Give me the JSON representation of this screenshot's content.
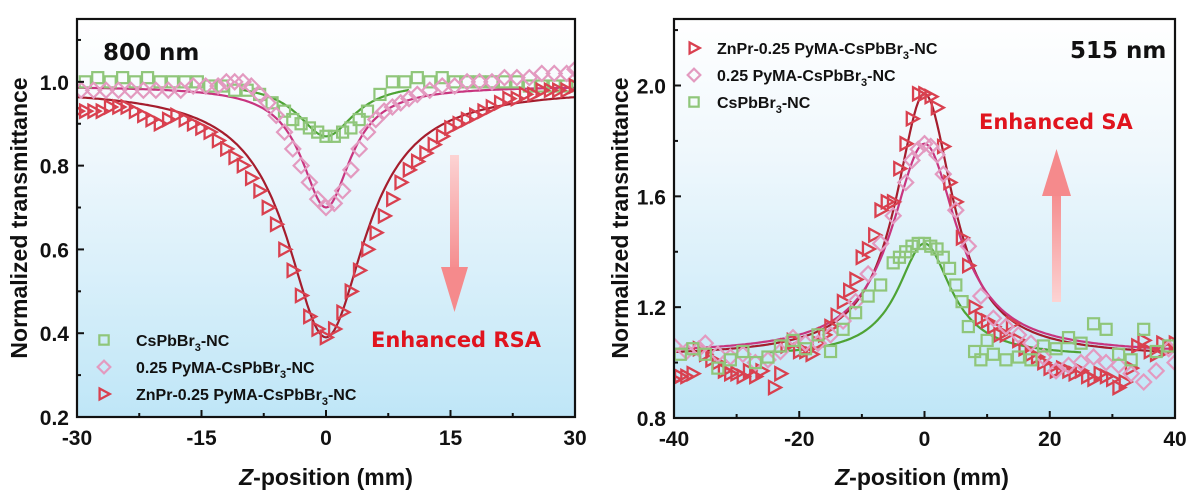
{
  "chart_data": [
    {
      "type": "scatter",
      "panel_label": "800 nm",
      "annotation": "Enhanced RSA",
      "annotation_arrow": "down",
      "xlabel_italic": "Z",
      "xlabel_rest": "-position (mm)",
      "ylabel": "Normalized transmittance",
      "xlim": [
        -30,
        30
      ],
      "ylim": [
        0.2,
        1.15
      ],
      "xticks": [
        -30,
        -15,
        0,
        15,
        30
      ],
      "xtick_labels": [
        "-30",
        "-15",
        "0",
        "15",
        "30"
      ],
      "yticks": [
        0.2,
        0.4,
        0.6,
        0.8,
        1.0
      ],
      "ytick_labels": [
        "0.2",
        "0.4",
        "0.6",
        "0.8",
        "1.0"
      ],
      "legend_position": "bottom-left",
      "series": [
        {
          "name_main": "CsPbBr",
          "name_sub": "3",
          "name_tail": "-NC",
          "marker": "square",
          "color": "#8fc67a",
          "line_color": "#4ea335",
          "fit": {
            "baseline": 1.0,
            "depth": 0.13,
            "width": 4.2,
            "x_range": [
              -10,
              10
            ]
          },
          "x": [
            -29,
            -27.5,
            -26,
            -24.5,
            -23,
            -21.5,
            -20,
            -18.5,
            -17,
            -15.5,
            -14,
            -12.5,
            -11,
            -9.5,
            -8,
            -6.5,
            -5,
            -4,
            -3,
            -2,
            -1,
            0,
            1,
            2,
            3,
            4,
            5,
            6.5,
            8,
            9.5,
            11,
            12.5,
            14,
            15.5,
            17,
            18.5,
            20,
            21.5,
            23,
            24.5,
            26,
            27.5,
            29
          ],
          "y": [
            1.0,
            1.01,
            1.0,
            1.01,
            1.0,
            1.01,
            1.0,
            1.0,
            1.0,
            1.0,
            0.99,
            0.99,
            0.98,
            0.98,
            0.97,
            0.95,
            0.93,
            0.91,
            0.9,
            0.89,
            0.88,
            0.87,
            0.87,
            0.88,
            0.89,
            0.91,
            0.93,
            0.97,
            1.0,
            1.0,
            1.01,
            1.0,
            1.01,
            1.0,
            1.0,
            1.0,
            1.0,
            1.0,
            1.0,
            0.99,
            0.99,
            0.99,
            0.99
          ]
        },
        {
          "name_main": "0.25 PyMA-CsPbBr",
          "name_sub": "3",
          "name_tail": "-NC",
          "marker": "diamond",
          "color": "#e39ac0",
          "line_color": "#c8357f",
          "fit": {
            "baseline": 0.99,
            "depth": 0.29,
            "width": 3.6,
            "x_range": [
              -30,
              30
            ]
          },
          "x": [
            -29.5,
            -28,
            -26.5,
            -25,
            -23.5,
            -22,
            -20.5,
            -19,
            -17.5,
            -16,
            -14.5,
            -13,
            -12,
            -11,
            -10,
            -9,
            -8,
            -7,
            -6,
            -5,
            -4,
            -3,
            -2,
            -1,
            0,
            1,
            2,
            3,
            4,
            5,
            6,
            7,
            8,
            9,
            10,
            11,
            12.5,
            14,
            15.5,
            17,
            18.5,
            20,
            21.5,
            23,
            24.5,
            26,
            27.5,
            29,
            30
          ],
          "y": [
            0.98,
            0.98,
            0.98,
            0.98,
            0.98,
            0.98,
            0.98,
            0.98,
            0.98,
            0.99,
            0.99,
            0.99,
            1.0,
            1.0,
            1.0,
            0.99,
            0.97,
            0.95,
            0.92,
            0.88,
            0.84,
            0.8,
            0.76,
            0.72,
            0.7,
            0.71,
            0.74,
            0.79,
            0.84,
            0.88,
            0.91,
            0.93,
            0.94,
            0.95,
            0.96,
            0.97,
            0.98,
            0.99,
            0.99,
            1.0,
            1.0,
            1.0,
            1.01,
            1.01,
            1.01,
            1.02,
            1.02,
            1.02,
            1.03
          ]
        },
        {
          "name_main": "ZnPr-0.25 PyMA-CsPbBr",
          "name_sub": "3",
          "name_tail": "-NC",
          "marker": "triangle-right",
          "color": "#d9404f",
          "line_color": "#a51d2d",
          "fit": {
            "baseline": 0.985,
            "depth": 0.595,
            "width": 5.8,
            "x_range": [
              -30,
              30
            ]
          },
          "x": [
            -30,
            -29,
            -28,
            -27,
            -26,
            -25,
            -24,
            -23,
            -22,
            -21,
            -20,
            -19,
            -18,
            -17,
            -16,
            -15,
            -14,
            -13,
            -12,
            -11,
            -10,
            -9,
            -8,
            -7,
            -6,
            -5,
            -4,
            -3,
            -2,
            -1,
            0,
            1,
            2,
            3,
            4,
            5,
            6,
            7,
            8,
            9,
            10,
            11,
            12,
            13,
            14,
            15,
            16,
            17,
            18,
            19,
            20,
            21,
            22,
            23,
            24,
            25,
            26,
            27,
            28,
            29,
            30
          ],
          "y": [
            0.93,
            0.93,
            0.93,
            0.93,
            0.94,
            0.94,
            0.94,
            0.93,
            0.92,
            0.91,
            0.9,
            0.91,
            0.92,
            0.91,
            0.9,
            0.89,
            0.88,
            0.86,
            0.84,
            0.82,
            0.8,
            0.77,
            0.74,
            0.7,
            0.66,
            0.6,
            0.55,
            0.49,
            0.44,
            0.41,
            0.39,
            0.41,
            0.45,
            0.5,
            0.55,
            0.6,
            0.64,
            0.68,
            0.72,
            0.76,
            0.79,
            0.81,
            0.83,
            0.85,
            0.87,
            0.89,
            0.9,
            0.91,
            0.92,
            0.93,
            0.94,
            0.95,
            0.96,
            0.96,
            0.97,
            0.97,
            0.98,
            0.98,
            0.98,
            0.98,
            0.99
          ]
        }
      ]
    },
    {
      "type": "scatter",
      "panel_label": "515 nm",
      "annotation": "Enhanced SA",
      "annotation_arrow": "up",
      "xlabel_italic": "Z",
      "xlabel_rest": "-position (mm)",
      "ylabel": "Normalized transmittance",
      "xlim": [
        -40,
        40
      ],
      "ylim": [
        0.8,
        2.24
      ],
      "xticks": [
        -40,
        -20,
        0,
        20,
        40
      ],
      "xtick_labels": [
        "-40",
        "-20",
        "0",
        "20",
        "40"
      ],
      "yticks": [
        0.8,
        1.2,
        1.6,
        2.0
      ],
      "ytick_labels": [
        "0.8",
        "1.2",
        "1.6",
        "2.0"
      ],
      "legend_position": "top-left",
      "series": [
        {
          "name_main": "ZnPr-0.25 PyMA-CsPbBr",
          "name_sub": "3",
          "name_tail": "-NC",
          "marker": "triangle-right",
          "color": "#d9404f",
          "line_color": "#a51d2d",
          "fit": {
            "baseline": 1.02,
            "height": 0.95,
            "width": 5.6,
            "x_range": [
              -40,
              40
            ]
          },
          "x": [
            -40,
            -39,
            -38,
            -37,
            -36,
            -35,
            -34,
            -33,
            -32,
            -31,
            -30,
            -29,
            -28,
            -27,
            -26,
            -24,
            -23,
            -22,
            -21,
            -20,
            -19,
            -18,
            -17,
            -16,
            -15,
            -14,
            -13,
            -12,
            -11,
            -10,
            -9,
            -8,
            -7,
            -6,
            -5,
            -4,
            -3,
            -2,
            -1,
            0,
            1,
            2,
            3,
            4,
            5,
            6,
            7,
            8,
            9,
            10,
            11,
            12,
            13,
            14,
            15,
            16,
            17,
            18,
            19,
            20,
            21,
            22,
            23,
            24,
            25,
            26,
            27,
            28,
            29,
            30,
            31,
            32,
            33,
            34,
            35,
            36,
            37,
            38,
            39,
            40
          ],
          "y": [
            0.94,
            0.95,
            0.95,
            0.96,
            1.05,
            1.03,
            1.01,
            1.0,
            0.97,
            0.96,
            0.96,
            0.95,
            0.97,
            0.95,
            0.97,
            0.91,
            0.96,
            1.06,
            1.08,
            1.04,
            1.04,
            1.03,
            1.07,
            1.1,
            1.13,
            1.17,
            1.22,
            1.26,
            1.3,
            1.38,
            1.41,
            1.46,
            1.55,
            1.58,
            1.58,
            1.7,
            1.79,
            1.88,
            1.97,
            1.97,
            1.96,
            1.92,
            1.78,
            1.65,
            1.58,
            1.45,
            1.35,
            1.2,
            1.16,
            1.15,
            1.13,
            1.1,
            1.1,
            1.14,
            1.08,
            1.05,
            1.03,
            1.02,
            1.0,
            0.98,
            0.97,
            0.98,
            0.97,
            0.96,
            0.97,
            0.95,
            0.94,
            0.96,
            0.95,
            0.94,
            0.91,
            0.93,
            0.98,
            1.06,
            1.08,
            1.04,
            1.03,
            1.07,
            1.05,
            1.07
          ],
          "legend_index": 0
        },
        {
          "name_main": "0.25 PyMA-CsPbBr",
          "name_sub": "3",
          "name_tail": "-NC",
          "marker": "diamond",
          "color": "#e39ac0",
          "line_color": "#c8357f",
          "fit": {
            "baseline": 1.03,
            "height": 0.76,
            "width": 6.4,
            "x_range": [
              -40,
              40
            ]
          },
          "x": [
            -40,
            -38,
            -36,
            -35,
            -33,
            -31,
            -29,
            -27,
            -25,
            -23,
            -21,
            -19,
            -17,
            -15,
            -13,
            -11,
            -9,
            -7,
            -5,
            -3,
            -2,
            -1,
            0,
            1,
            2,
            3,
            5,
            7,
            9,
            11,
            13,
            15,
            17,
            19,
            21,
            23,
            25,
            27,
            29,
            31,
            33,
            35,
            37,
            39,
            40
          ],
          "y": [
            1.06,
            1.04,
            1.05,
            1.07,
            1.03,
            1.02,
            1.03,
            1.0,
            1.01,
            1.04,
            1.09,
            1.07,
            1.07,
            1.1,
            1.15,
            1.22,
            1.32,
            1.43,
            1.53,
            1.65,
            1.73,
            1.77,
            1.79,
            1.78,
            1.75,
            1.68,
            1.55,
            1.42,
            1.24,
            1.16,
            1.13,
            1.1,
            1.07,
            1.02,
            0.97,
            0.99,
            1.0,
            1.02,
            1.0,
            0.99,
            0.96,
            0.93,
            0.97,
            1.05,
            1.0
          ]
        },
        {
          "name_main": "CsPbBr",
          "name_sub": "3",
          "name_tail": "-NC",
          "marker": "square",
          "color": "#8fc67a",
          "line_color": "#4ea335",
          "fit": {
            "baseline": 1.02,
            "height": 0.41,
            "width": 5.2,
            "x_range": [
              -25,
              25
            ]
          },
          "x": [
            -39,
            -37,
            -35,
            -33,
            -31,
            -29,
            -27,
            -25,
            -23,
            -21,
            -19,
            -17,
            -15,
            -13,
            -11,
            -9,
            -7,
            -5,
            -4,
            -3,
            -2,
            -1,
            0,
            1,
            2,
            3,
            4,
            5,
            6,
            7,
            8,
            9,
            10,
            11,
            13,
            15,
            17,
            19,
            21,
            23,
            25,
            27,
            29,
            31,
            33,
            35,
            37,
            39
          ],
          "y": [
            1.03,
            1.05,
            1.03,
            0.98,
            1.01,
            1.04,
            1.0,
            1.02,
            1.06,
            1.08,
            1.05,
            1.1,
            1.04,
            1.12,
            1.18,
            1.24,
            1.28,
            1.36,
            1.38,
            1.4,
            1.42,
            1.43,
            1.43,
            1.42,
            1.41,
            1.38,
            1.34,
            1.28,
            1.22,
            1.13,
            1.04,
            1.01,
            1.08,
            1.03,
            1.01,
            1.02,
            1.01,
            1.06,
            1.05,
            1.09,
            1.07,
            1.14,
            1.12,
            1.03,
            1.01,
            1.12,
            1.04,
            1.06
          ]
        }
      ]
    }
  ]
}
